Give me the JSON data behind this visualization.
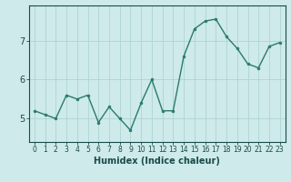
{
  "x": [
    0,
    1,
    2,
    3,
    4,
    5,
    6,
    7,
    8,
    9,
    10,
    11,
    12,
    13,
    14,
    15,
    16,
    17,
    18,
    19,
    20,
    21,
    22,
    23
  ],
  "y": [
    5.2,
    5.1,
    5.0,
    5.6,
    5.5,
    5.6,
    4.9,
    5.3,
    5.0,
    4.7,
    5.4,
    6.0,
    5.2,
    5.2,
    6.6,
    7.3,
    7.5,
    7.55,
    7.1,
    6.8,
    6.4,
    6.3,
    6.85,
    6.95
  ],
  "line_color": "#2a7a6f",
  "marker": "o",
  "markersize": 2.0,
  "linewidth": 1.0,
  "xlabel": "Humidex (Indice chaleur)",
  "xlim": [
    -0.5,
    23.5
  ],
  "ylim": [
    4.4,
    7.9
  ],
  "yticks": [
    5,
    6,
    7
  ],
  "xticks": [
    0,
    1,
    2,
    3,
    4,
    5,
    6,
    7,
    8,
    9,
    10,
    11,
    12,
    13,
    14,
    15,
    16,
    17,
    18,
    19,
    20,
    21,
    22,
    23
  ],
  "bg_color": "#ceeaea",
  "grid_color": "#aed4d4",
  "tick_color": "#1a4a4a",
  "xlabel_fontsize": 7,
  "tick_fontsize": 5.5,
  "ytick_fontsize": 7
}
